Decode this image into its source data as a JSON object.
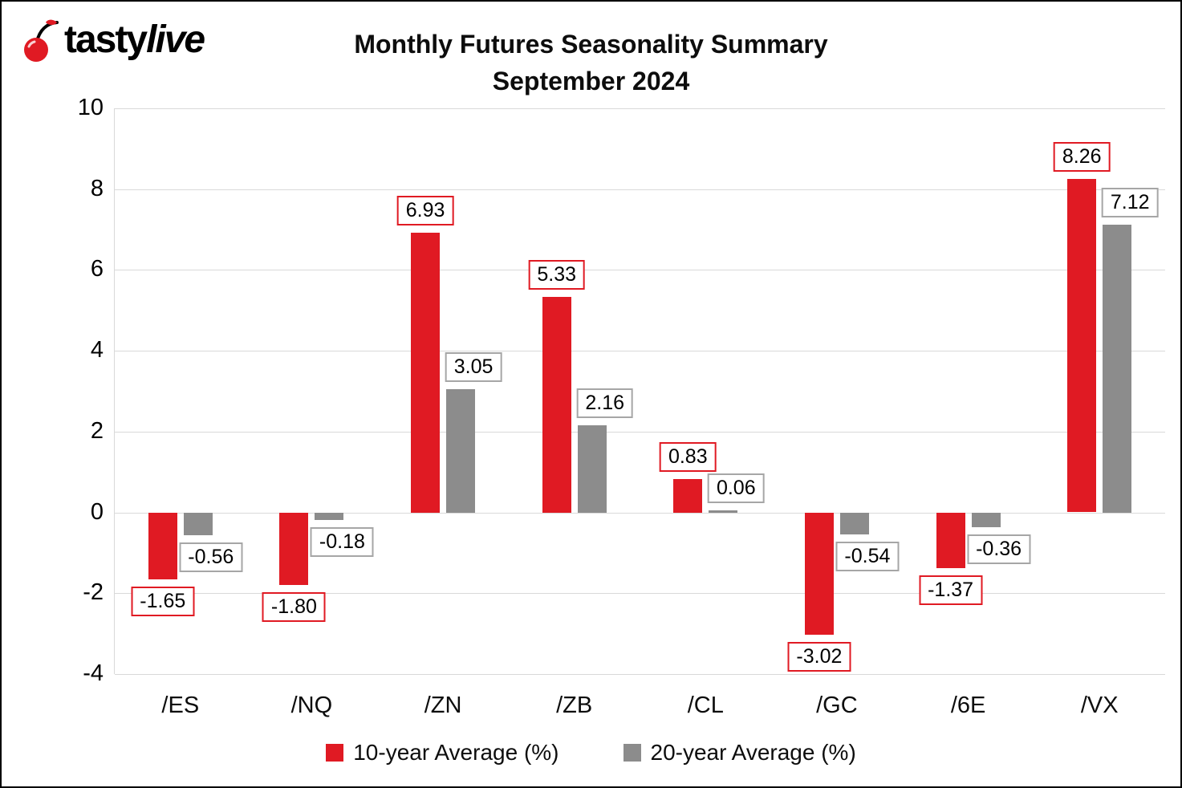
{
  "logo": {
    "brand_first": "tasty",
    "brand_second": "live"
  },
  "title_line1": "Monthly Futures Seasonality Summary",
  "title_line2": "September 2024",
  "colors": {
    "red": "#e01a23",
    "gray": "#8c8c8c",
    "red_label_border": "#e01a23",
    "gray_label_border": "#a6a6a6",
    "gridline": "#d9d9d9"
  },
  "chart_data": {
    "type": "bar",
    "title": "Monthly Futures Seasonality Summary September 2024",
    "categories": [
      "/ES",
      "/NQ",
      "/ZN",
      "/ZB",
      "/CL",
      "/GC",
      "/6E",
      "/VX"
    ],
    "series": [
      {
        "name": "10-year Average (%)",
        "color": "#e01a23",
        "label_border": "#e01a23",
        "values": [
          -1.65,
          -1.8,
          6.93,
          5.33,
          0.83,
          -3.02,
          -1.37,
          8.26
        ],
        "labels": [
          "-1.65",
          "-1.80",
          "6.93",
          "5.33",
          "0.83",
          "-3.02",
          "-1.37",
          "8.26"
        ]
      },
      {
        "name": "20-year Average (%)",
        "color": "#8c8c8c",
        "label_border": "#a6a6a6",
        "values": [
          -0.56,
          -0.18,
          3.05,
          2.16,
          0.06,
          -0.54,
          -0.36,
          7.12
        ],
        "labels": [
          "-0.56",
          "-0.18",
          "3.05",
          "2.16",
          "0.06",
          "-0.54",
          "-0.36",
          "7.12"
        ]
      }
    ],
    "xlabel": "",
    "ylabel": "",
    "ylim": [
      -4,
      10
    ],
    "yticks": [
      10,
      8,
      6,
      4,
      2,
      0,
      -2,
      -4
    ],
    "grid": true,
    "legend_position": "bottom"
  }
}
